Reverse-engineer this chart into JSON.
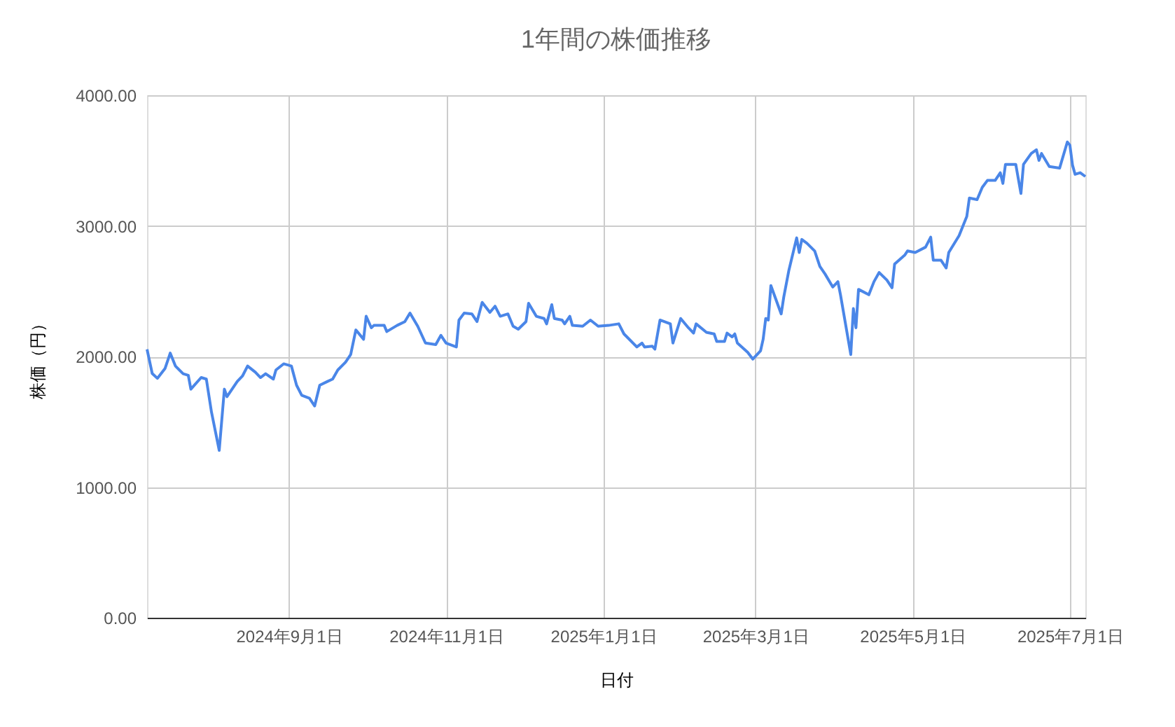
{
  "chart_data": {
    "type": "line",
    "title": "1年間の株価推移",
    "xlabel": "日付",
    "ylabel": "株価（円）",
    "x": [
      "2024-07-08",
      "2024-07-10",
      "2024-07-12",
      "2024-07-15",
      "2024-07-17",
      "2024-07-19",
      "2024-07-22",
      "2024-07-24",
      "2024-07-25",
      "2024-07-29",
      "2024-07-31",
      "2024-08-02",
      "2024-08-05",
      "2024-08-07",
      "2024-08-08",
      "2024-08-12",
      "2024-08-14",
      "2024-08-16",
      "2024-08-19",
      "2024-08-21",
      "2024-08-23",
      "2024-08-26",
      "2024-08-27",
      "2024-08-30",
      "2024-09-02",
      "2024-09-04",
      "2024-09-06",
      "2024-09-09",
      "2024-09-11",
      "2024-09-13",
      "2024-09-16",
      "2024-09-18",
      "2024-09-20",
      "2024-09-23",
      "2024-09-25",
      "2024-09-27",
      "2024-09-30",
      "2024-10-01",
      "2024-10-03",
      "2024-10-04",
      "2024-10-08",
      "2024-10-09",
      "2024-10-13",
      "2024-10-16",
      "2024-10-18",
      "2024-10-21",
      "2024-10-24",
      "2024-10-28",
      "2024-10-30",
      "2024-11-01",
      "2024-11-05",
      "2024-11-06",
      "2024-11-08",
      "2024-11-11",
      "2024-11-13",
      "2024-11-15",
      "2024-11-18",
      "2024-11-20",
      "2024-11-22",
      "2024-11-25",
      "2024-11-27",
      "2024-11-29",
      "2024-12-02",
      "2024-12-03",
      "2024-12-06",
      "2024-12-09",
      "2024-12-10",
      "2024-12-12",
      "2024-12-13",
      "2024-12-16",
      "2024-12-17",
      "2024-12-19",
      "2024-12-20",
      "2024-12-24",
      "2024-12-27",
      "2024-12-30",
      "2025-01-03",
      "2025-01-07",
      "2025-01-09",
      "2025-01-14",
      "2025-01-16",
      "2025-01-17",
      "2025-01-20",
      "2025-01-21",
      "2025-01-23",
      "2025-01-27",
      "2025-01-28",
      "2025-01-31",
      "2025-02-03",
      "2025-02-05",
      "2025-02-06",
      "2025-02-10",
      "2025-02-13",
      "2025-02-14",
      "2025-02-17",
      "2025-02-18",
      "2025-02-20",
      "2025-02-21",
      "2025-02-22",
      "2025-02-26",
      "2025-02-28",
      "2025-03-03",
      "2025-03-04",
      "2025-03-05",
      "2025-03-06",
      "2025-03-07",
      "2025-03-11",
      "2025-03-12",
      "2025-03-14",
      "2025-03-17",
      "2025-03-18",
      "2025-03-19",
      "2025-03-21",
      "2025-03-24",
      "2025-03-26",
      "2025-03-28",
      "2025-03-31",
      "2025-04-02",
      "2025-04-03",
      "2025-04-07",
      "2025-04-08",
      "2025-04-09",
      "2025-04-10",
      "2025-04-14",
      "2025-04-16",
      "2025-04-18",
      "2025-04-21",
      "2025-04-23",
      "2025-04-24",
      "2025-04-28",
      "2025-04-29",
      "2025-05-02",
      "2025-05-06",
      "2025-05-08",
      "2025-05-09",
      "2025-05-12",
      "2025-05-14",
      "2025-05-15",
      "2025-05-19",
      "2025-05-22",
      "2025-05-23",
      "2025-05-26",
      "2025-05-28",
      "2025-05-30",
      "2025-06-02",
      "2025-06-04",
      "2025-06-05",
      "2025-06-06",
      "2025-06-10",
      "2025-06-12",
      "2025-06-13",
      "2025-06-16",
      "2025-06-18",
      "2025-06-19",
      "2025-06-20",
      "2025-06-23",
      "2025-06-27",
      "2025-06-30",
      "2025-07-01",
      "2025-07-02",
      "2025-07-03",
      "2025-07-05",
      "2025-07-07"
    ],
    "series": [
      {
        "color": "#4a86e8",
        "values": [
          2055,
          1870,
          1833,
          1909,
          2026,
          1927,
          1868,
          1856,
          1750,
          1839,
          1827,
          1574,
          1281,
          1750,
          1692,
          1809,
          1850,
          1927,
          1880,
          1839,
          1868,
          1827,
          1897,
          1944,
          1927,
          1780,
          1703,
          1680,
          1621,
          1780,
          1809,
          1827,
          1897,
          1956,
          2015,
          2203,
          2132,
          2308,
          2220,
          2238,
          2238,
          2191,
          2238,
          2267,
          2332,
          2232,
          2103,
          2091,
          2162,
          2103,
          2073,
          2279,
          2332,
          2326,
          2267,
          2414,
          2338,
          2385,
          2308,
          2326,
          2232,
          2209,
          2267,
          2408,
          2308,
          2291,
          2250,
          2397,
          2291,
          2279,
          2250,
          2308,
          2238,
          2232,
          2279,
          2232,
          2238,
          2250,
          2173,
          2073,
          2103,
          2073,
          2079,
          2056,
          2279,
          2250,
          2103,
          2291,
          2220,
          2179,
          2250,
          2185,
          2173,
          2115,
          2115,
          2179,
          2150,
          2173,
          2103,
          2032,
          1980,
          2044,
          2132,
          2291,
          2279,
          2543,
          2326,
          2455,
          2661,
          2908,
          2796,
          2896,
          2867,
          2808,
          2690,
          2632,
          2532,
          2573,
          2473,
          2015,
          2367,
          2220,
          2514,
          2473,
          2573,
          2643,
          2585,
          2526,
          2708,
          2778,
          2808,
          2796,
          2837,
          2914,
          2737,
          2737,
          2678,
          2796,
          2925,
          3072,
          3213,
          3201,
          3295,
          3348,
          3348,
          3407,
          3325,
          3471,
          3471,
          3248,
          3471,
          3554,
          3583,
          3501,
          3554,
          3454,
          3442,
          3642,
          3618,
          3466,
          3395,
          3407,
          3378
        ]
      }
    ],
    "xlim": [
      "2024-07-08",
      "2025-07-07"
    ],
    "xticks": [
      {
        "value": "2024-09-01",
        "label": "2024年9月1日"
      },
      {
        "value": "2024-11-01",
        "label": "2024年11月1日"
      },
      {
        "value": "2025-01-01",
        "label": "2025年1月1日"
      },
      {
        "value": "2025-03-01",
        "label": "2025年3月1日"
      },
      {
        "value": "2025-05-01",
        "label": "2025年5月1日"
      },
      {
        "value": "2025-07-01",
        "label": "2025年7月1日"
      }
    ],
    "ylim": [
      0,
      4000
    ],
    "yticks": [
      {
        "value": 0,
        "label": "0.00"
      },
      {
        "value": 1000,
        "label": "1000.00"
      },
      {
        "value": 2000,
        "label": "2000.00"
      },
      {
        "value": 3000,
        "label": "3000.00"
      },
      {
        "value": 4000,
        "label": "4000.00"
      }
    ],
    "grid": true,
    "marker": "none",
    "line_style": "solid"
  }
}
